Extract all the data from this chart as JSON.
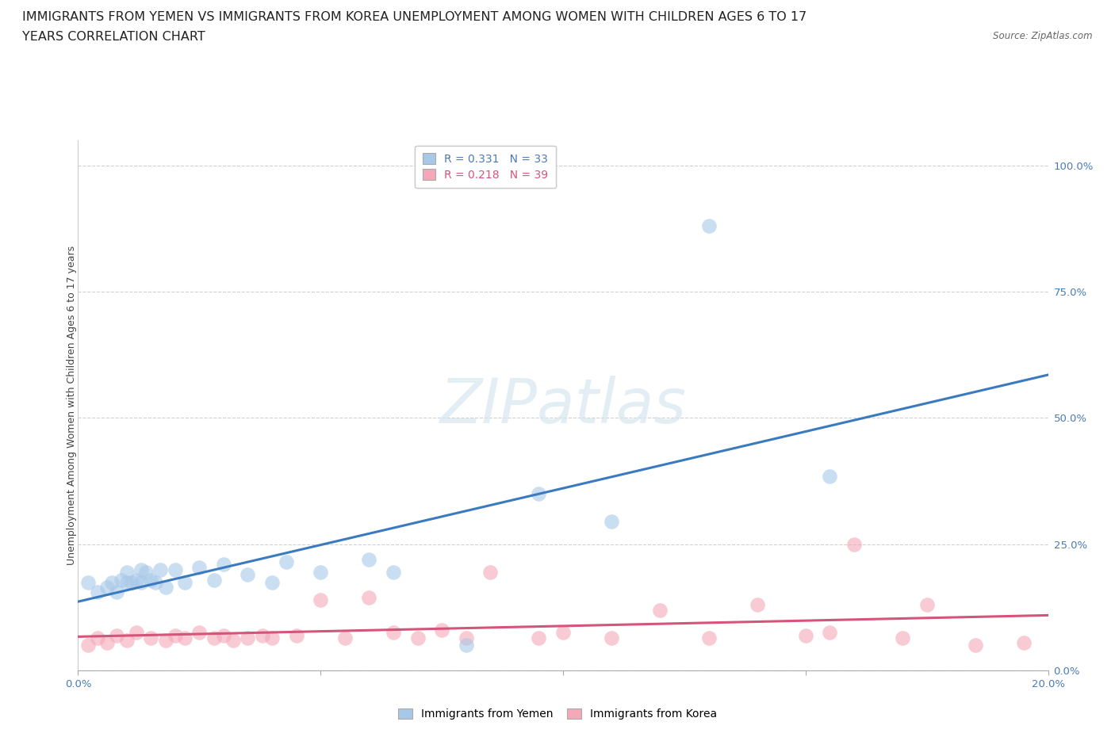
{
  "title_line1": "IMMIGRANTS FROM YEMEN VS IMMIGRANTS FROM KOREA UNEMPLOYMENT AMONG WOMEN WITH CHILDREN AGES 6 TO 17",
  "title_line2": "YEARS CORRELATION CHART",
  "source": "Source: ZipAtlas.com",
  "ylabel": "Unemployment Among Women with Children Ages 6 to 17 years",
  "watermark": "ZIPatlas",
  "legend_r_yemen": "R = 0.331",
  "legend_n_yemen": "N = 33",
  "legend_r_korea": "R = 0.218",
  "legend_n_korea": "N = 39",
  "xlim": [
    0.0,
    0.2
  ],
  "ylim": [
    0.0,
    1.05
  ],
  "yticks": [
    0.0,
    0.25,
    0.5,
    0.75,
    1.0
  ],
  "ytick_labels": [
    "0.0%",
    "25.0%",
    "50.0%",
    "75.0%",
    "100.0%"
  ],
  "xticks": [
    0.0,
    0.05,
    0.1,
    0.15,
    0.2
  ],
  "xtick_labels": [
    "0.0%",
    "",
    "",
    "",
    "20.0%"
  ],
  "color_yemen": "#a8c8e8",
  "color_korea": "#f4a8b8",
  "trend_color_yemen": "#3a7abf",
  "trend_color_korea": "#d4547a",
  "yemen_x": [
    0.002,
    0.004,
    0.006,
    0.007,
    0.008,
    0.009,
    0.01,
    0.01,
    0.011,
    0.012,
    0.013,
    0.013,
    0.014,
    0.015,
    0.016,
    0.017,
    0.018,
    0.02,
    0.022,
    0.025,
    0.028,
    0.03,
    0.035,
    0.04,
    0.043,
    0.05,
    0.06,
    0.065,
    0.08,
    0.095,
    0.11,
    0.13,
    0.155
  ],
  "yemen_y": [
    0.175,
    0.155,
    0.165,
    0.175,
    0.155,
    0.18,
    0.175,
    0.195,
    0.175,
    0.18,
    0.2,
    0.175,
    0.195,
    0.18,
    0.175,
    0.2,
    0.165,
    0.2,
    0.175,
    0.205,
    0.18,
    0.21,
    0.19,
    0.175,
    0.215,
    0.195,
    0.22,
    0.195,
    0.05,
    0.35,
    0.295,
    0.88,
    0.385
  ],
  "korea_x": [
    0.002,
    0.004,
    0.006,
    0.008,
    0.01,
    0.012,
    0.015,
    0.018,
    0.02,
    0.022,
    0.025,
    0.028,
    0.03,
    0.032,
    0.035,
    0.038,
    0.04,
    0.045,
    0.05,
    0.055,
    0.06,
    0.065,
    0.07,
    0.075,
    0.08,
    0.085,
    0.095,
    0.1,
    0.11,
    0.12,
    0.13,
    0.14,
    0.15,
    0.155,
    0.16,
    0.17,
    0.175,
    0.185,
    0.195
  ],
  "korea_y": [
    0.05,
    0.065,
    0.055,
    0.07,
    0.06,
    0.075,
    0.065,
    0.06,
    0.07,
    0.065,
    0.075,
    0.065,
    0.07,
    0.06,
    0.065,
    0.07,
    0.065,
    0.07,
    0.14,
    0.065,
    0.145,
    0.075,
    0.065,
    0.08,
    0.065,
    0.195,
    0.065,
    0.075,
    0.065,
    0.12,
    0.065,
    0.13,
    0.07,
    0.075,
    0.25,
    0.065,
    0.13,
    0.05,
    0.055
  ],
  "background_color": "#ffffff",
  "grid_color": "#d0d0d0",
  "title_fontsize": 11.5,
  "axis_fontsize": 9,
  "tick_fontsize": 9.5
}
